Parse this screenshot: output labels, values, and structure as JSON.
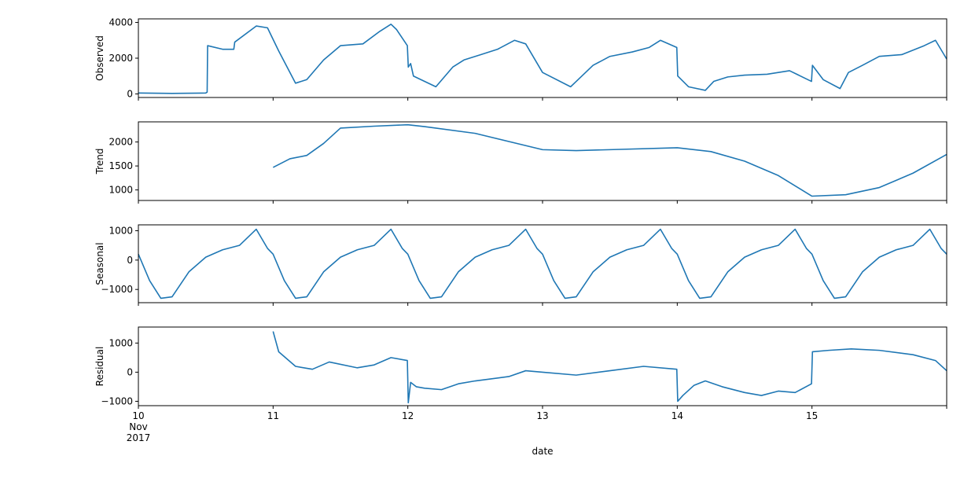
{
  "chart_data": [
    {
      "type": "line",
      "ylabel": "Observed",
      "ylim": [
        -200,
        4200
      ],
      "yticks": [
        0,
        2000,
        4000
      ],
      "xlim": [
        "2017-11-10 00:00",
        "2017-11-16 00:00"
      ],
      "line_color": "#1f77b4",
      "series": [
        {
          "x": [
            "2017-11-10 00:00",
            "2017-11-10 06:00",
            "2017-11-10 12:00",
            "2017-11-10 12:15",
            "2017-11-10 12:20",
            "2017-11-10 15:00",
            "2017-11-10 17:00",
            "2017-11-10 17:10",
            "2017-11-10 21:00",
            "2017-11-10 23:00",
            "2017-11-11 01:00",
            "2017-11-11 04:00",
            "2017-11-11 06:00",
            "2017-11-11 09:00",
            "2017-11-11 12:00",
            "2017-11-11 16:00",
            "2017-11-11 19:00",
            "2017-11-11 21:00",
            "2017-11-11 22:00",
            "2017-11-11 23:55",
            "2017-11-12 00:05",
            "2017-11-12 00:30",
            "2017-11-12 01:00",
            "2017-11-12 05:00",
            "2017-11-12 08:00",
            "2017-11-12 10:00",
            "2017-11-12 13:00",
            "2017-11-12 16:00",
            "2017-11-12 19:00",
            "2017-11-12 21:00",
            "2017-11-13 00:00",
            "2017-11-13 05:00",
            "2017-11-13 06:00",
            "2017-11-13 09:00",
            "2017-11-13 12:00",
            "2017-11-13 16:00",
            "2017-11-13 19:00",
            "2017-11-13 21:00",
            "2017-11-13 23:55",
            "2017-11-14 00:05",
            "2017-11-14 02:00",
            "2017-11-14 05:00",
            "2017-11-14 06:30",
            "2017-11-14 09:00",
            "2017-11-14 12:00",
            "2017-11-14 16:00",
            "2017-11-14 20:00",
            "2017-11-14 23:55",
            "2017-11-15 00:05",
            "2017-11-15 02:00",
            "2017-11-15 05:00",
            "2017-11-15 06:30",
            "2017-11-15 09:00",
            "2017-11-15 12:00",
            "2017-11-15 16:00",
            "2017-11-15 20:00",
            "2017-11-15 22:00",
            "2017-11-16 00:00"
          ],
          "y": [
            50,
            30,
            50,
            100,
            2700,
            2500,
            2500,
            2900,
            3800,
            3700,
            2400,
            600,
            800,
            1900,
            2700,
            2800,
            3500,
            3900,
            3600,
            2700,
            1500,
            1700,
            1000,
            400,
            1500,
            1900,
            2200,
            2500,
            3000,
            2800,
            1200,
            400,
            700,
            1600,
            2100,
            2350,
            2600,
            3000,
            2600,
            1000,
            400,
            200,
            700,
            950,
            1050,
            1100,
            1300,
            700,
            1600,
            800,
            300,
            1200,
            1600,
            2100,
            2200,
            2700,
            3000,
            1950
          ]
        }
      ]
    },
    {
      "type": "line",
      "ylabel": "Trend",
      "ylim": [
        780,
        2420
      ],
      "yticks": [
        1000,
        1500,
        2000
      ],
      "xlim": [
        "2017-11-10 00:00",
        "2017-11-16 00:00"
      ],
      "line_color": "#1f77b4",
      "series": [
        {
          "x": [
            "2017-11-11 00:00",
            "2017-11-11 03:00",
            "2017-11-11 06:00",
            "2017-11-11 09:00",
            "2017-11-11 12:00",
            "2017-11-11 18:00",
            "2017-11-12 00:00",
            "2017-11-12 03:00",
            "2017-11-12 12:00",
            "2017-11-13 00:00",
            "2017-11-13 06:00",
            "2017-11-13 12:00",
            "2017-11-14 00:00",
            "2017-11-14 06:00",
            "2017-11-14 12:00",
            "2017-11-14 18:00",
            "2017-11-15 00:00",
            "2017-11-15 06:00",
            "2017-11-15 12:00",
            "2017-11-15 18:00",
            "2017-11-16 00:00"
          ],
          "y": [
            1470,
            1650,
            1720,
            1970,
            2290,
            2330,
            2360,
            2320,
            2180,
            1840,
            1820,
            1840,
            1880,
            1800,
            1600,
            1300,
            870,
            900,
            1050,
            1350,
            1740
          ]
        }
      ]
    },
    {
      "type": "line",
      "ylabel": "Seasonal",
      "ylim": [
        -1450,
        1200
      ],
      "yticks": [
        -1000,
        0,
        1000
      ],
      "xlim": [
        "2017-11-10 00:00",
        "2017-11-16 00:00"
      ],
      "line_color": "#1f77b4",
      "period_hours": 24,
      "series": [
        {
          "x": [
            "2017-11-10 00:00",
            "2017-11-10 02:00",
            "2017-11-10 04:00",
            "2017-11-10 06:00",
            "2017-11-10 09:00",
            "2017-11-10 12:00",
            "2017-11-10 15:00",
            "2017-11-10 18:00",
            "2017-11-10 21:00",
            "2017-11-10 23:00",
            "2017-11-11 00:00"
          ],
          "y": [
            200,
            -700,
            -1300,
            -1250,
            -400,
            100,
            350,
            500,
            1050,
            400,
            200
          ]
        }
      ]
    },
    {
      "type": "line",
      "ylabel": "Residual",
      "xlabel": "date",
      "ylim": [
        -1150,
        1550
      ],
      "yticks": [
        -1000,
        0,
        1000
      ],
      "xlim": [
        "2017-11-10 00:00",
        "2017-11-16 00:00"
      ],
      "xtick_labels": [
        [
          "10",
          "Nov",
          "2017"
        ],
        [
          "11"
        ],
        [
          "12"
        ],
        [
          "13"
        ],
        [
          "14"
        ],
        [
          "15"
        ]
      ],
      "line_color": "#1f77b4",
      "series": [
        {
          "x": [
            "2017-11-11 00:00",
            "2017-11-11 01:00",
            "2017-11-11 04:00",
            "2017-11-11 07:00",
            "2017-11-11 10:00",
            "2017-11-11 15:00",
            "2017-11-11 18:00",
            "2017-11-11 21:00",
            "2017-11-11 23:55",
            "2017-11-12 00:05",
            "2017-11-12 00:30",
            "2017-11-12 01:30",
            "2017-11-12 03:00",
            "2017-11-12 06:00",
            "2017-11-12 09:00",
            "2017-11-12 12:00",
            "2017-11-12 18:00",
            "2017-11-12 21:00",
            "2017-11-13 00:00",
            "2017-11-13 06:00",
            "2017-11-13 12:00",
            "2017-11-13 18:00",
            "2017-11-13 23:55",
            "2017-11-14 00:05",
            "2017-11-14 01:00",
            "2017-11-14 03:00",
            "2017-11-14 05:00",
            "2017-11-14 08:00",
            "2017-11-14 12:00",
            "2017-11-14 15:00",
            "2017-11-14 18:00",
            "2017-11-14 21:00",
            "2017-11-14 23:55",
            "2017-11-15 00:05",
            "2017-11-15 03:00",
            "2017-11-15 07:00",
            "2017-11-15 12:00",
            "2017-11-15 18:00",
            "2017-11-15 22:00",
            "2017-11-16 00:00"
          ],
          "y": [
            1400,
            700,
            200,
            100,
            350,
            150,
            250,
            500,
            400,
            -1050,
            -350,
            -500,
            -550,
            -600,
            -400,
            -300,
            -150,
            50,
            0,
            -100,
            50,
            200,
            100,
            -1000,
            -800,
            -450,
            -300,
            -500,
            -700,
            -800,
            -650,
            -700,
            -400,
            700,
            750,
            800,
            750,
            600,
            400,
            50
          ]
        }
      ]
    }
  ]
}
